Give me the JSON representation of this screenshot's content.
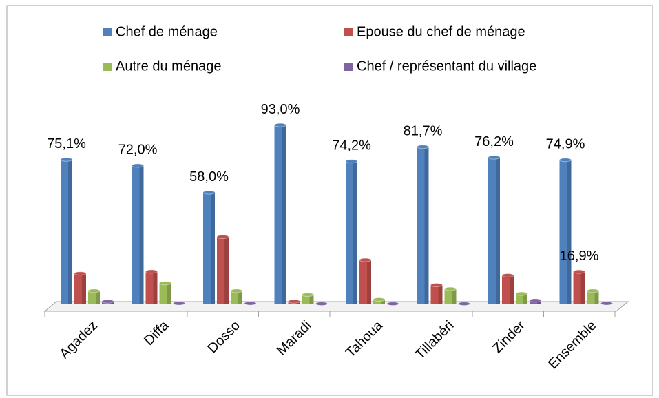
{
  "chart_data": {
    "type": "bar3d",
    "categories": [
      "Agadez",
      "Diffa",
      "Dosso",
      "Maradi",
      "Tahoua",
      "Tillabéri",
      "Zinder",
      "Ensemble"
    ],
    "series": [
      {
        "name": "Chef de ménage",
        "color": "#4f81bd",
        "values": [
          75.1,
          72.0,
          58.0,
          93.0,
          74.2,
          81.7,
          76.2,
          74.9
        ],
        "value_labels": [
          "75,1%",
          "72,0%",
          "58,0%",
          "93,0%",
          "74,2%",
          "81,7%",
          "76,2%",
          "74,9%"
        ]
      },
      {
        "name": "Epouse du chef de ménage",
        "color": "#c0504d",
        "values": [
          16,
          17,
          35,
          1.5,
          23,
          10,
          15,
          16.9
        ],
        "value_labels": [
          null,
          null,
          null,
          null,
          null,
          null,
          null,
          "16,9%"
        ]
      },
      {
        "name": "Autre du ménage",
        "color": "#9bbb59",
        "values": [
          7,
          11,
          7,
          5,
          2.5,
          8,
          5.5,
          7
        ]
      },
      {
        "name": "Chef / représentant du village",
        "color": "#8064a2",
        "values": [
          1.5,
          0.5,
          0.5,
          0.3,
          0.3,
          0.3,
          2,
          0.5
        ]
      }
    ],
    "ylim": [
      0,
      100
    ],
    "legend": "top"
  }
}
